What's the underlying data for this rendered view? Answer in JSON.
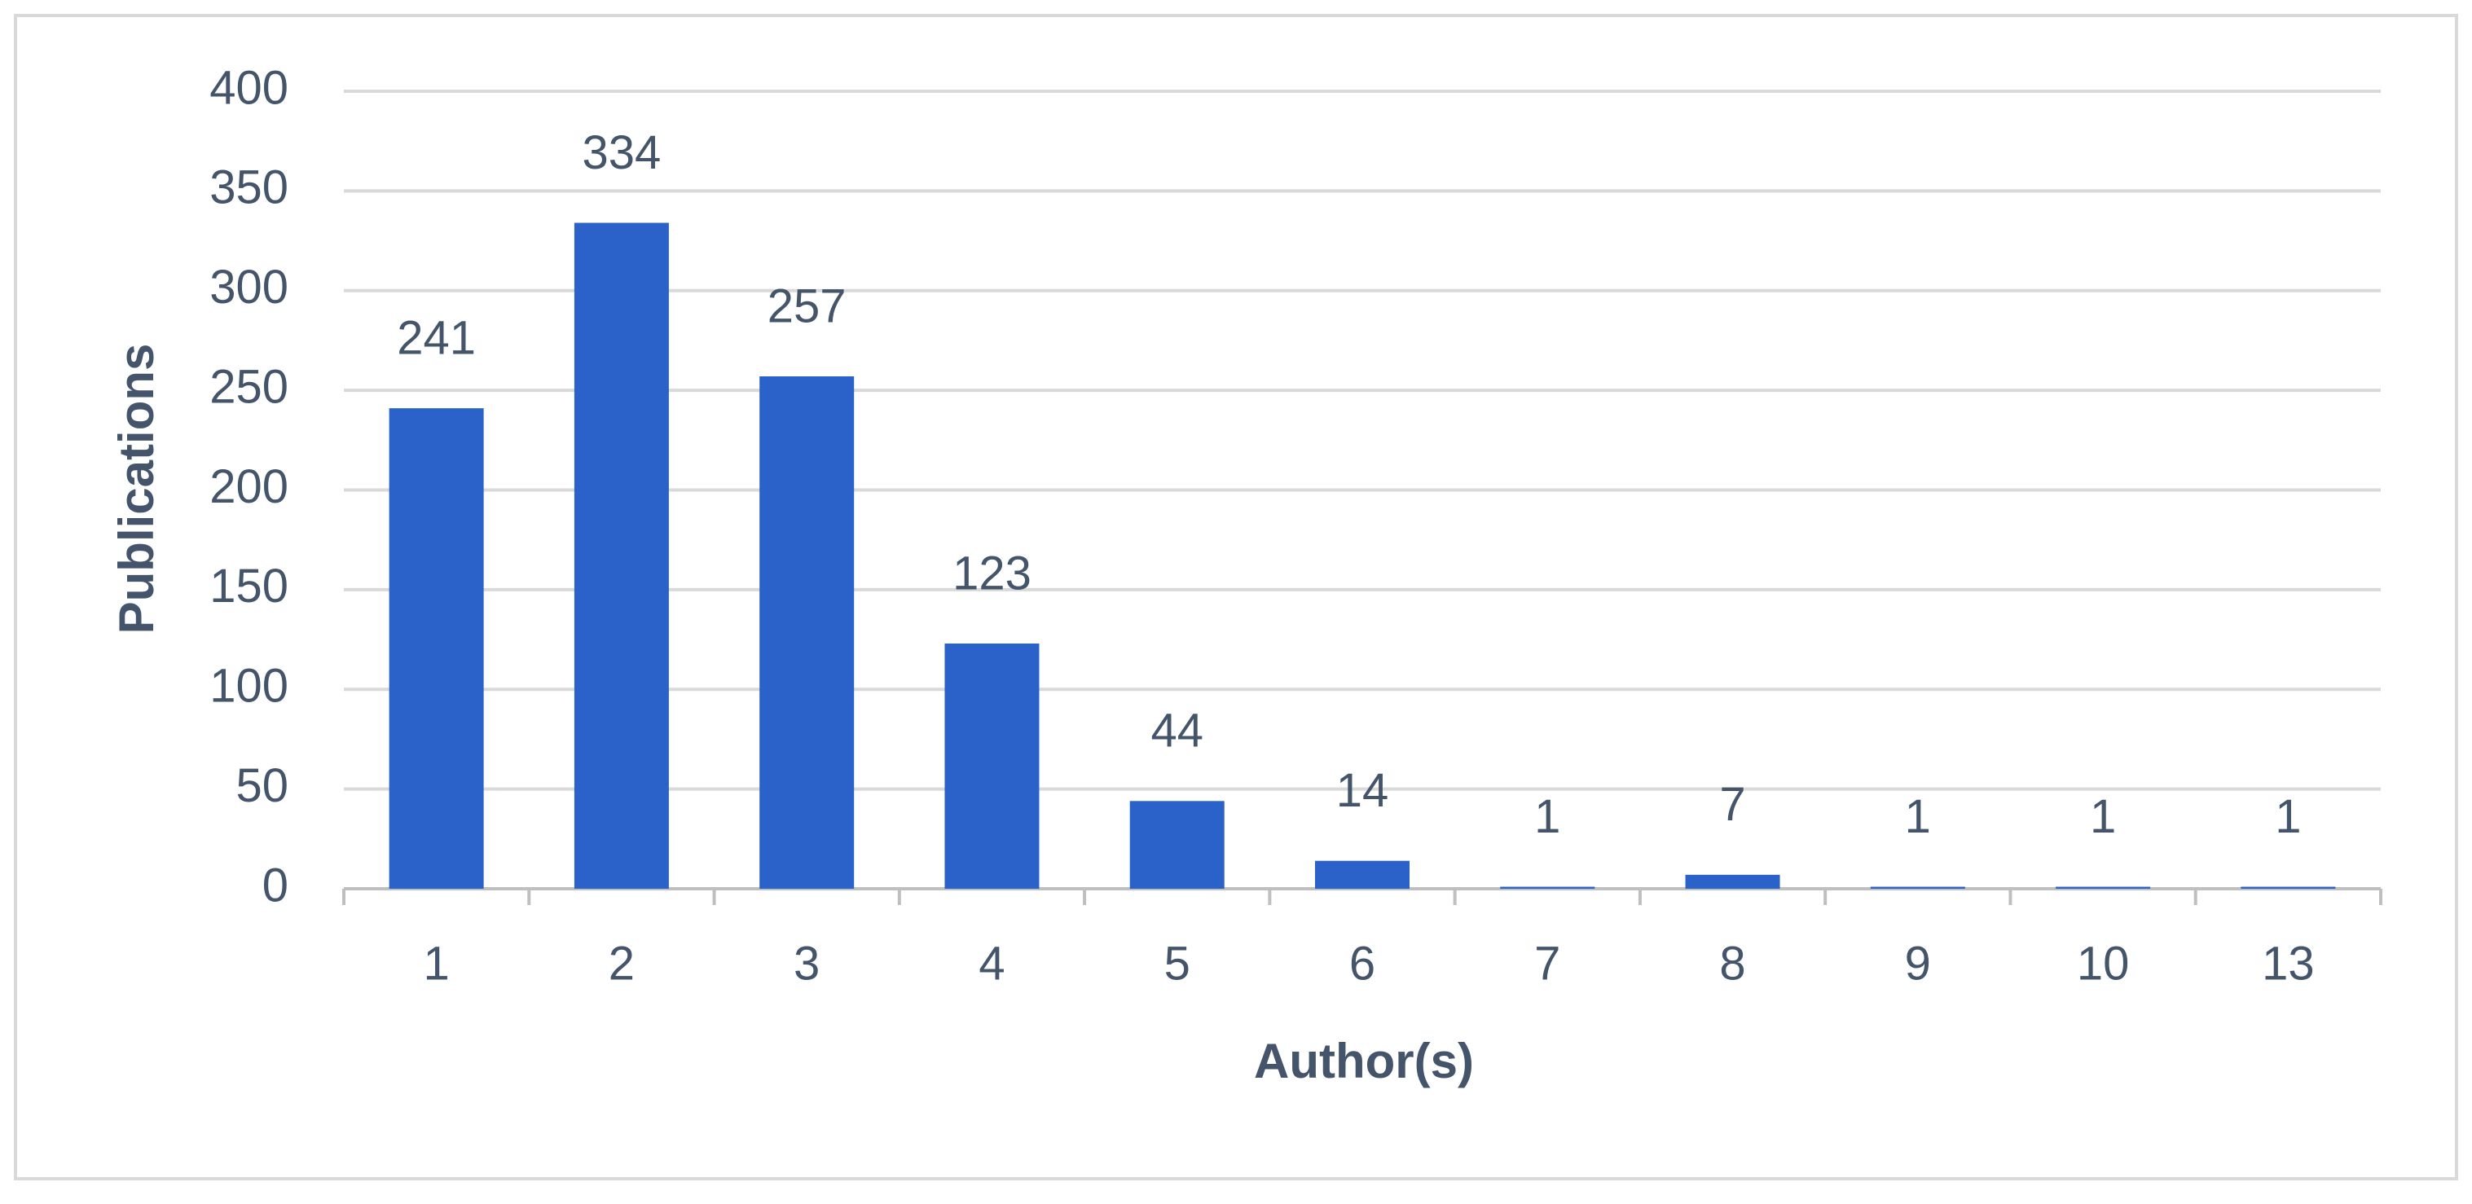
{
  "chart_data": {
    "type": "bar",
    "x_label": "Author(s)",
    "y_label": "Publications",
    "categories": [
      "1",
      "2",
      "3",
      "4",
      "5",
      "6",
      "7",
      "8",
      "9",
      "10",
      "13"
    ],
    "values": [
      241,
      334,
      257,
      123,
      44,
      14,
      1,
      7,
      1,
      1,
      1
    ],
    "color": "#2a62c9",
    "ylim": [
      0,
      400
    ],
    "yticks": [
      0,
      50,
      100,
      150,
      200,
      250,
      300,
      350,
      400
    ],
    "grid": true
  }
}
